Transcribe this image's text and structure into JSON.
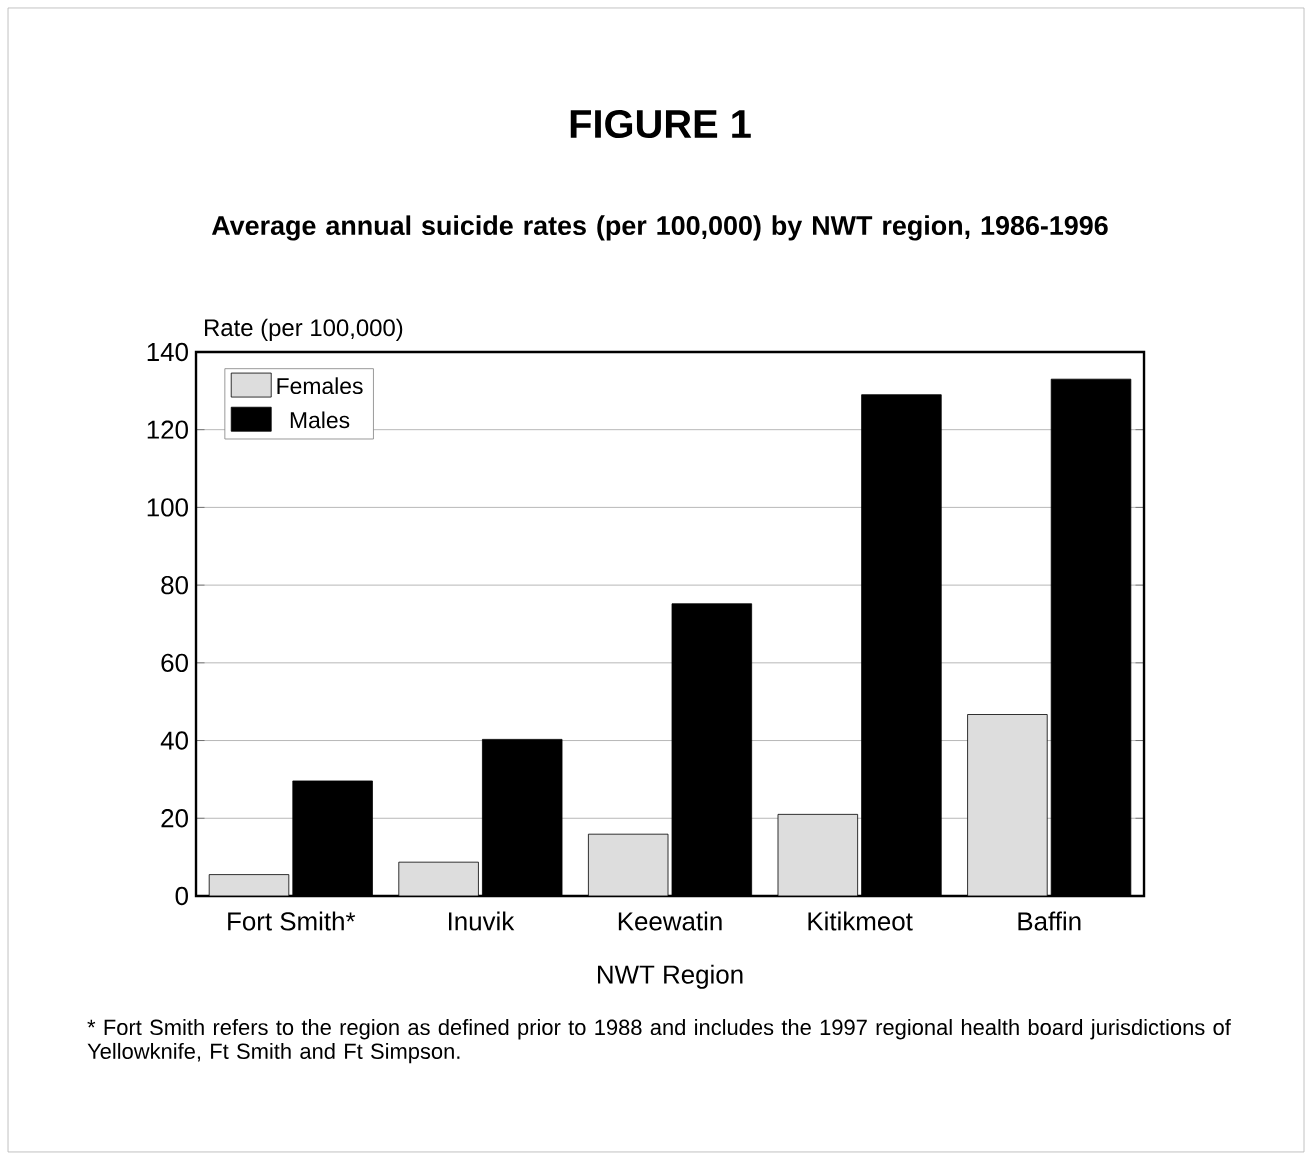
{
  "chart_data": {
    "type": "bar",
    "title": "FIGURE 1",
    "subtitle": "Average annual suicide rates (per 100,000) by NWT region, 1986-1996",
    "xlabel": "NWT Region",
    "ylabel": "Rate (per 100,000)",
    "categories": [
      "Fort Smith*",
      "Inuvik",
      "Keewatin",
      "Kitikmeot",
      "Baffin"
    ],
    "series": [
      {
        "name": "Females",
        "color": "#dddddd",
        "values": [
          5.5,
          8.7,
          15.9,
          21,
          46.7
        ]
      },
      {
        "name": "Males",
        "color": "#000000",
        "values": [
          29.6,
          40.3,
          75.2,
          129,
          133
        ]
      }
    ],
    "ylim": [
      0,
      140
    ],
    "yticks": [
      0,
      20,
      40,
      60,
      80,
      100,
      120,
      140
    ],
    "grid": "y",
    "legend": "top left",
    "annotations": [
      "* Fort Smith refers to the region as defined prior to 1988 and includes the 1997 regional health board jurisdictions of Yellowknife, Ft Smith and Ft Simpson."
    ]
  }
}
